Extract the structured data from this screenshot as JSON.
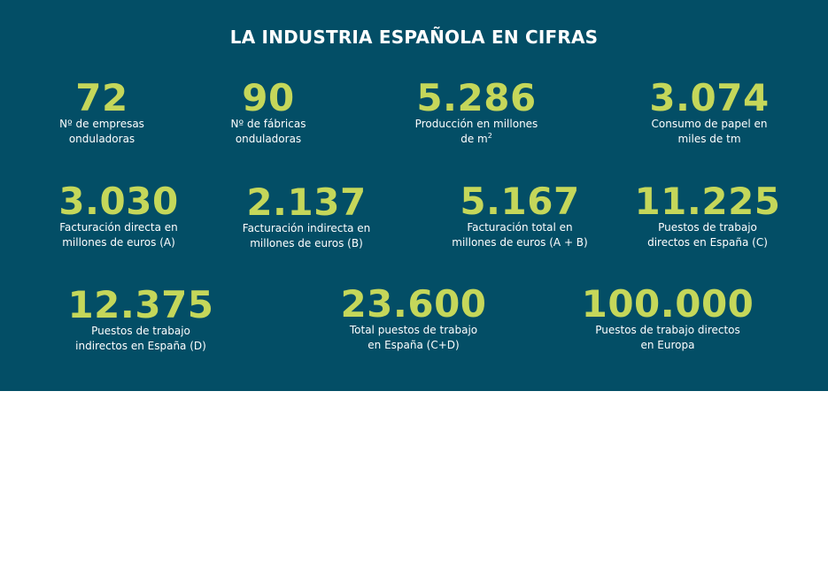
{
  "title": "LA INDUSTRIA ESPAÑOLA EN CIFRAS",
  "accent_color": "#c5d75a",
  "background_color": "#034e66",
  "stats": [
    {
      "value": "72",
      "label_line1": "Nº de empresas",
      "label_line2": "onduladoras"
    },
    {
      "value": "90",
      "label_line1": "Nº de fábricas",
      "label_line2": "onduladoras"
    },
    {
      "value": "5.286",
      "label_line1": "Producción en millones",
      "label_line2": "de m",
      "label_sup": "2"
    },
    {
      "value": "3.074",
      "label_line1": "Consumo de papel en",
      "label_line2": "miles de tm"
    },
    {
      "value": "3.030",
      "label_line1": "Facturación directa en",
      "label_line2": "millones de euros (A)"
    },
    {
      "value": "2.137",
      "label_line1": "Facturación indirecta en",
      "label_line2": "millones de euros (B)"
    },
    {
      "value": "5.167",
      "label_line1": "Facturación total en",
      "label_line2": "millones de euros (A + B)"
    },
    {
      "value": "11.225",
      "label_line1": "Puestos de trabajo",
      "label_line2": "directos en España (C)"
    },
    {
      "value": "12.375",
      "label_line1": "Puestos de trabajo",
      "label_line2": "indirectos en España (D)"
    },
    {
      "value": "23.600",
      "label_line1": "Total puestos de trabajo",
      "label_line2": "en España (C+D)"
    },
    {
      "value": "100.000",
      "label_line1": "Puestos de trabajo directos",
      "label_line2": "en Europa"
    }
  ]
}
